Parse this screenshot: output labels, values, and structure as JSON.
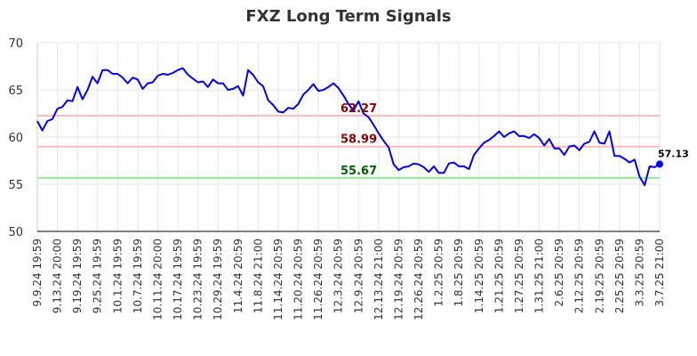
{
  "chart_data": {
    "type": "line",
    "title": "FXZ Long Term Signals",
    "xlabel": "",
    "ylabel": "",
    "ylim": [
      50,
      70
    ],
    "yticks": [
      50,
      55,
      60,
      65,
      70
    ],
    "grid": true,
    "x_tick_labels": [
      "9.9.24 19:59",
      "9.13.24 20:00",
      "9.19.24 19:59",
      "9.25.24 19:59",
      "10.1.24 19:59",
      "10.7.24 19:59",
      "10.11.24 20:00",
      "10.17.24 19:59",
      "10.23.24 19:59",
      "10.29.24 19:59",
      "11.4.24 20:59",
      "11.8.24 21:00",
      "11.14.24 20:59",
      "11.20.24 20:59",
      "11.26.24 20:59",
      "12.3.24 20:59",
      "12.9.24 20:59",
      "12.13.24 21:00",
      "12.19.24 20:59",
      "12.26.24 20:59",
      "1.2.25 20:59",
      "1.8.25 20:59",
      "1.14.25 20:59",
      "1.21.25 20:59",
      "1.27.25 20:59",
      "1.31.25 21:00",
      "2.6.25 20:59",
      "2.12.25 20:59",
      "2.19.25 20:59",
      "2.25.25 20:59",
      "3.3.25 20:59",
      "3.7.25 21:00"
    ],
    "series": [
      {
        "color": "#0000ee",
        "values": [
          61.7,
          60.7,
          61.7,
          61.9,
          63.0,
          63.2,
          63.9,
          63.8,
          65.3,
          64.0,
          65.0,
          66.4,
          65.7,
          67.1,
          67.1,
          66.7,
          66.7,
          66.3,
          65.7,
          66.3,
          66.1,
          65.1,
          65.7,
          65.8,
          66.5,
          66.7,
          66.6,
          66.8,
          67.1,
          67.3,
          66.6,
          66.2,
          65.8,
          65.9,
          65.3,
          66.1,
          65.7,
          65.7,
          65.0,
          65.1,
          65.4,
          64.4,
          67.1,
          66.6,
          65.8,
          65.4,
          63.9,
          63.4,
          62.7,
          62.6,
          63.1,
          63.0,
          63.5,
          64.5,
          65.0,
          65.6,
          64.9,
          65.0,
          65.3,
          65.7,
          65.2,
          64.4,
          63.5,
          62.8,
          63.8,
          62.5,
          62.1,
          61.3,
          60.4,
          59.6,
          58.9,
          57.1,
          56.5,
          56.8,
          56.9,
          57.2,
          57.1,
          56.8,
          56.3,
          56.9,
          56.2,
          56.2,
          57.2,
          57.3,
          56.9,
          56.9,
          56.6,
          58.1,
          58.8,
          59.4,
          59.7,
          60.1,
          60.6,
          60.0,
          60.4,
          60.6,
          60.1,
          60.1,
          59.9,
          60.3,
          59.9,
          59.1,
          59.8,
          58.8,
          58.8,
          58.1,
          59.0,
          59.1,
          58.6,
          59.3,
          59.5,
          60.6,
          59.4,
          59.3,
          60.6,
          58.0,
          58.0,
          57.7,
          57.3,
          57.6,
          55.8,
          54.9,
          56.9,
          56.8,
          57.13
        ]
      }
    ],
    "reference_lines": [
      {
        "value": 62.27,
        "label": "62.27",
        "color": "#ffbbbb",
        "label_color": "#8b0000"
      },
      {
        "value": 58.99,
        "label": "58.99",
        "color": "#ffbbbb",
        "label_color": "#8b0000"
      },
      {
        "value": 55.67,
        "label": "55.67",
        "color": "#90ee90",
        "label_color": "#006400"
      }
    ],
    "last_point_label": "57.13"
  }
}
